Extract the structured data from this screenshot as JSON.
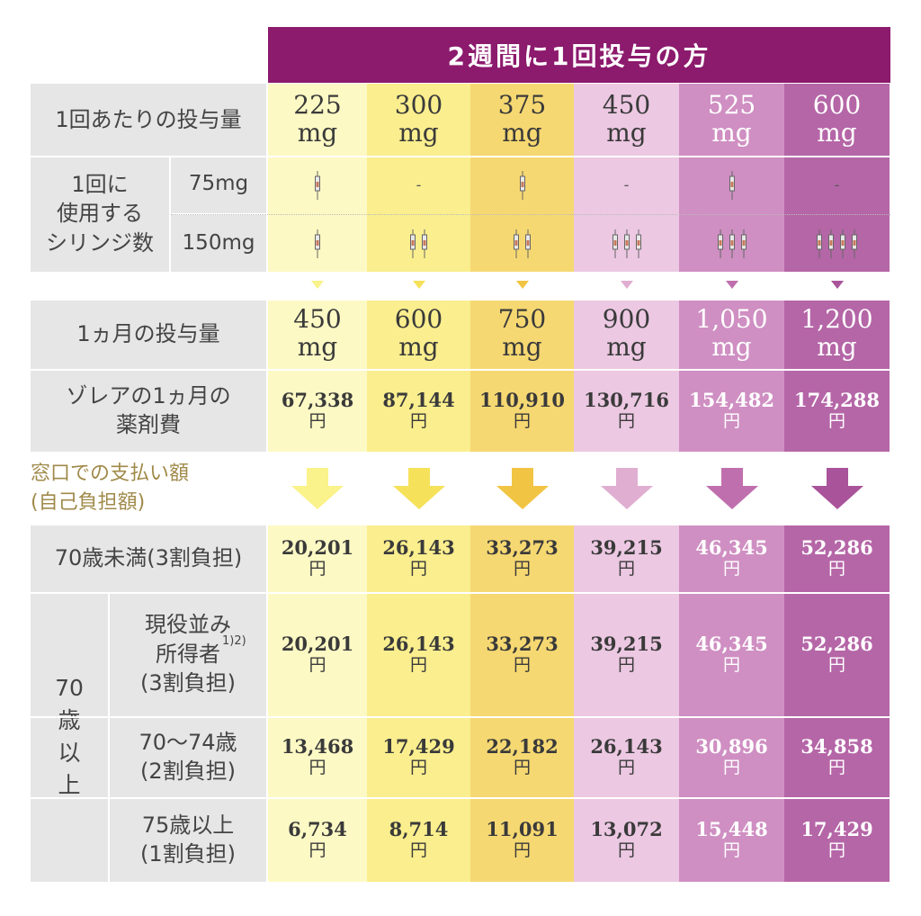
{
  "header": {
    "title": "2週間に1回投与の方"
  },
  "row_labels": {
    "dose_per_time": "1回あたりの投与量",
    "syringes_group": "1回に\n使用する\nシリンジ数",
    "syr_75": "75mg",
    "syr_150": "150mg",
    "monthly_dose": "1ヵ月の投与量",
    "monthly_cost": "ゾレアの1ヵ月の\n薬剤費",
    "window_payment": "窓口での支払い額\n(自己負担額)",
    "under70": "70歳未満(3割負担)",
    "over70": "70\n歳\n以\n上",
    "working_income": "現役並み\n所得者\n(3割負担)",
    "working_income_sup": "1)2)",
    "age70_74": "70〜74歳\n(2割負担)",
    "age75": "75歳以上\n(1割負担)"
  },
  "unit_mg": "mg",
  "unit_yen": "円",
  "columns": [
    {
      "dose": "225",
      "syr75": 1,
      "syr150": 1,
      "monthly": "450",
      "cost": "67,338",
      "under70": "20,201",
      "working": "20,201",
      "age70_74": "13,468",
      "age75": "6,734",
      "bg": "#fdf9c4",
      "arrow": "#faf28a",
      "light_text": false
    },
    {
      "dose": "300",
      "syr75": 0,
      "syr150": 2,
      "monthly": "600",
      "cost": "87,144",
      "under70": "26,143",
      "working": "26,143",
      "age70_74": "17,429",
      "age75": "8,714",
      "bg": "#faee8e",
      "arrow": "#f6e15a",
      "light_text": false
    },
    {
      "dose": "375",
      "syr75": 1,
      "syr150": 2,
      "monthly": "750",
      "cost": "110,910",
      "under70": "33,273",
      "working": "33,273",
      "age70_74": "22,182",
      "age75": "11,091",
      "bg": "#f6d872",
      "arrow": "#f2c443",
      "light_text": false
    },
    {
      "dose": "450",
      "syr75": 0,
      "syr150": 3,
      "monthly": "900",
      "cost": "130,716",
      "under70": "39,215",
      "working": "39,215",
      "age70_74": "26,143",
      "age75": "13,072",
      "bg": "#ecc8e2",
      "arrow": "#e0aed1",
      "light_text": false
    },
    {
      "dose": "525",
      "syr75": 1,
      "syr150": 3,
      "monthly": "1,050",
      "cost": "154,482",
      "under70": "46,345",
      "working": "46,345",
      "age70_74": "30,896",
      "age75": "15,448",
      "bg": "#cf8fc2",
      "arrow": "#c06fae",
      "light_text": true
    },
    {
      "dose": "600",
      "syr75": 0,
      "syr150": 4,
      "monthly": "1,200",
      "cost": "174,288",
      "under70": "52,286",
      "working": "52,286",
      "age70_74": "34,858",
      "age75": "17,429",
      "bg": "#b566a7",
      "arrow": "#a9539a",
      "light_text": true
    }
  ],
  "colors": {
    "header_bg": "#8c1a6d",
    "label_bg": "#e6e6e6",
    "payment_label": "#a08a4a",
    "payment_band_col1": "#fffbd9",
    "payment_band_col6": "#f7e8f3"
  },
  "icons": {
    "syringe": "syringe-icon",
    "arrow": "arrow-down-icon",
    "chevron": "chevron-down-icon"
  }
}
